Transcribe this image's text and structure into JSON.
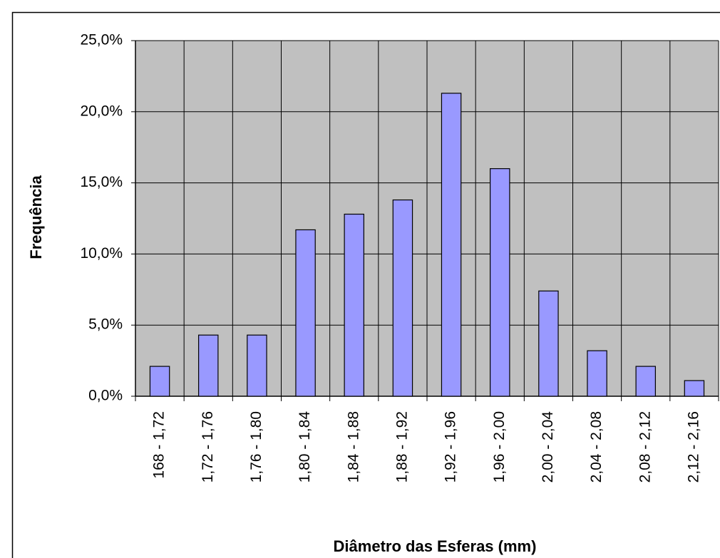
{
  "chart_data": {
    "type": "bar",
    "xlabel": "Diâmetro das Esferas (mm)",
    "ylabel": "Frequência",
    "categories": [
      "168 - 1,72",
      "1,72 - 1,76",
      "1,76 - 1,80",
      "1,80 - 1,84",
      "1,84 - 1,88",
      "1,88 - 1,92",
      "1,92 - 1,96",
      "1,96 - 2,00",
      "2,00 - 2,04",
      "2,04 - 2,08",
      "2,08 - 2,12",
      "2,12 - 2,16"
    ],
    "values": [
      2.1,
      4.3,
      4.3,
      11.7,
      12.8,
      13.8,
      21.3,
      16.0,
      7.4,
      3.2,
      2.1,
      1.1
    ],
    "color": "#9999ff",
    "ylim": [
      0,
      25
    ],
    "yticks": [
      {
        "value": 0,
        "label": "0,0%"
      },
      {
        "value": 5,
        "label": "5,0%"
      },
      {
        "value": 10,
        "label": "10,0%"
      },
      {
        "value": 15,
        "label": "15,0%"
      },
      {
        "value": 20,
        "label": "20,0%"
      },
      {
        "value": 25,
        "label": "25,0%"
      }
    ],
    "grid": true
  }
}
